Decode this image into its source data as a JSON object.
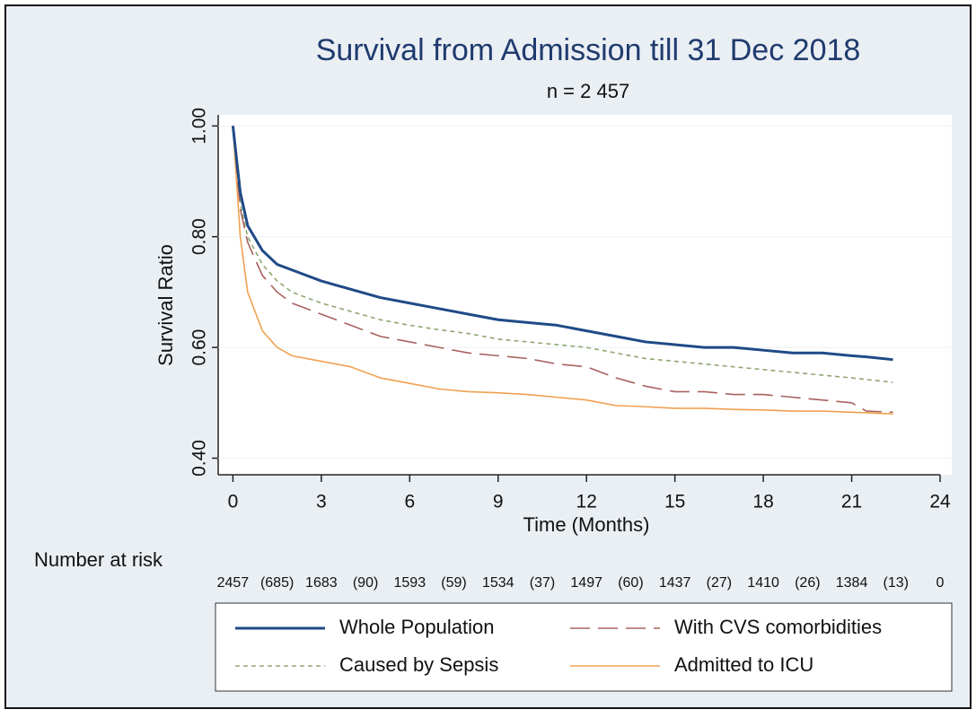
{
  "chart_data": {
    "type": "line",
    "title": "Survival from Admission till 31 Dec 2018",
    "subtitle": "n = 2 457",
    "x_label": "Time (Months)",
    "y_label": "Survival Ratio",
    "x": [
      0,
      0.25,
      0.5,
      1,
      1.5,
      2,
      3,
      4,
      5,
      6,
      7,
      8,
      9,
      10,
      11,
      12,
      13,
      14,
      15,
      16,
      17,
      18,
      19,
      20,
      21,
      21.5,
      22.4
    ],
    "series": [
      {
        "name": "Whole Population",
        "color": "#1f4a86",
        "dash": "solid",
        "values": [
          1.0,
          0.88,
          0.82,
          0.775,
          0.75,
          0.74,
          0.72,
          0.705,
          0.69,
          0.68,
          0.67,
          0.66,
          0.65,
          0.645,
          0.64,
          0.63,
          0.62,
          0.61,
          0.605,
          0.6,
          0.6,
          0.595,
          0.59,
          0.59,
          0.585,
          0.583,
          0.578
        ]
      },
      {
        "name": "With CVS comorbidities",
        "color": "#a8625f",
        "dash": "long",
        "values": [
          1.0,
          0.85,
          0.79,
          0.73,
          0.7,
          0.68,
          0.66,
          0.64,
          0.62,
          0.61,
          0.6,
          0.59,
          0.585,
          0.58,
          0.57,
          0.565,
          0.545,
          0.53,
          0.52,
          0.52,
          0.515,
          0.515,
          0.51,
          0.505,
          0.5,
          0.485,
          0.483
        ]
      },
      {
        "name": "Caused by Sepsis",
        "color": "#8fa872",
        "dash": "short",
        "values": [
          1.0,
          0.86,
          0.8,
          0.75,
          0.72,
          0.7,
          0.68,
          0.665,
          0.65,
          0.64,
          0.632,
          0.625,
          0.615,
          0.61,
          0.605,
          0.6,
          0.59,
          0.58,
          0.575,
          0.57,
          0.565,
          0.56,
          0.555,
          0.55,
          0.545,
          0.542,
          0.537
        ]
      },
      {
        "name": "Admitted to ICU",
        "color": "#f0a050",
        "dash": "solid",
        "values": [
          1.0,
          0.8,
          0.7,
          0.63,
          0.6,
          0.585,
          0.575,
          0.565,
          0.545,
          0.535,
          0.525,
          0.52,
          0.518,
          0.515,
          0.51,
          0.505,
          0.495,
          0.493,
          0.49,
          0.49,
          0.488,
          0.487,
          0.485,
          0.485,
          0.483,
          0.482,
          0.48
        ]
      }
    ],
    "xlim": [
      -0.5,
      24
    ],
    "ylim": [
      0.37,
      1.02
    ],
    "xticks": [
      0,
      3,
      6,
      9,
      12,
      15,
      18,
      21,
      24
    ],
    "yticks": [
      {
        "value": 0.4,
        "label": "0.40"
      },
      {
        "value": 0.6,
        "label": "0.60"
      },
      {
        "value": 0.8,
        "label": "0.80"
      },
      {
        "value": 1.0,
        "label": "1.00"
      }
    ],
    "grid": true,
    "number_at_risk": {
      "label": "Number at risk",
      "counts": [
        2457,
        1683,
        1593,
        1534,
        1497,
        1437,
        1410,
        1384,
        0
      ],
      "censored": [
        "(685)",
        "(90)",
        "(59)",
        "(37)",
        "(60)",
        "(27)",
        "(26)",
        "(13)"
      ]
    }
  }
}
